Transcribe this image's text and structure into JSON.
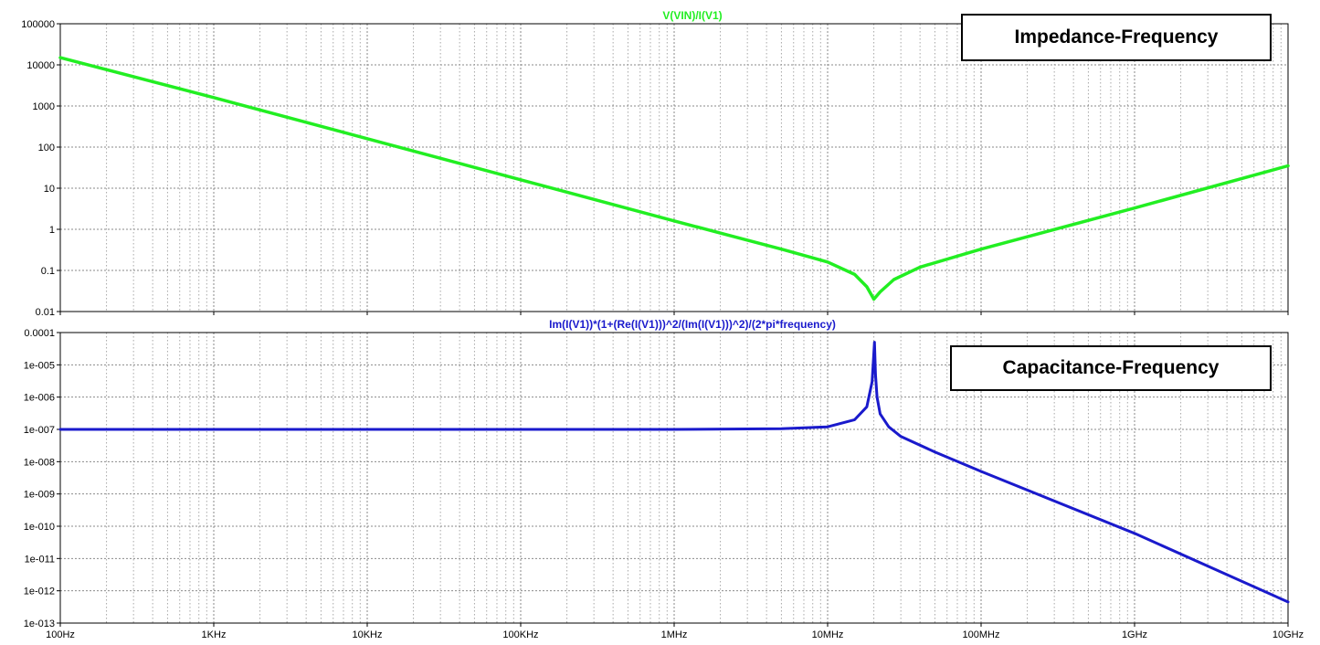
{
  "chart_data": [
    {
      "type": "line",
      "title": "V(VIN)/I(V1)",
      "annotation": "Impedance-Frequency",
      "x_scale": "log",
      "y_scale": "log",
      "xlim": [
        100,
        10000000000
      ],
      "ylim": [
        0.01,
        100000
      ],
      "x_ticks": [
        {
          "value": 100,
          "label": "100Hz"
        },
        {
          "value": 1000,
          "label": "1KHz"
        },
        {
          "value": 10000,
          "label": "10KHz"
        },
        {
          "value": 100000,
          "label": "100KHz"
        },
        {
          "value": 1000000,
          "label": "1MHz"
        },
        {
          "value": 10000000,
          "label": "10MHz"
        },
        {
          "value": 100000000,
          "label": "100MHz"
        },
        {
          "value": 1000000000,
          "label": "1GHz"
        },
        {
          "value": 10000000000,
          "label": "10GHz"
        }
      ],
      "y_ticks": [
        {
          "value": 0.01,
          "label": "0.01"
        },
        {
          "value": 0.1,
          "label": "0.1"
        },
        {
          "value": 1,
          "label": "1"
        },
        {
          "value": 10,
          "label": "10"
        },
        {
          "value": 100,
          "label": "100"
        },
        {
          "value": 1000,
          "label": "1000"
        },
        {
          "value": 10000,
          "label": "10000"
        },
        {
          "value": 100000,
          "label": "100000"
        }
      ],
      "grid": true,
      "color": "#22ee22",
      "series": [
        {
          "x": [
            100,
            1000,
            10000,
            100000,
            1000000,
            5000000,
            10000000,
            15000000,
            18000000,
            20000000,
            22000000,
            27000000,
            40000000,
            100000000,
            1000000000,
            10000000000
          ],
          "y": [
            15000,
            1600,
            160,
            16,
            1.6,
            0.33,
            0.16,
            0.08,
            0.04,
            0.02,
            0.03,
            0.06,
            0.12,
            0.33,
            3.3,
            35
          ]
        }
      ]
    },
    {
      "type": "line",
      "title": "Im(I(V1))*(1+(Re(I(V1)))^2/(Im(I(V1)))^2)/(2*pi*frequency)",
      "annotation": "Capacitance-Frequency",
      "x_scale": "log",
      "y_scale": "log",
      "xlim": [
        100,
        10000000000
      ],
      "ylim": [
        1e-13,
        0.0001
      ],
      "x_ticks": [
        {
          "value": 100,
          "label": "100Hz"
        },
        {
          "value": 1000,
          "label": "1KHz"
        },
        {
          "value": 10000,
          "label": "10KHz"
        },
        {
          "value": 100000,
          "label": "100KHz"
        },
        {
          "value": 1000000,
          "label": "1MHz"
        },
        {
          "value": 10000000,
          "label": "10MHz"
        },
        {
          "value": 100000000,
          "label": "100MHz"
        },
        {
          "value": 1000000000,
          "label": "1GHz"
        },
        {
          "value": 10000000000,
          "label": "10GHz"
        }
      ],
      "y_ticks": [
        {
          "value": 1e-13,
          "label": "1e-013"
        },
        {
          "value": 1e-12,
          "label": "1e-012"
        },
        {
          "value": 1e-11,
          "label": "1e-011"
        },
        {
          "value": 1e-10,
          "label": "1e-010"
        },
        {
          "value": 1e-09,
          "label": "1e-009"
        },
        {
          "value": 1e-08,
          "label": "1e-008"
        },
        {
          "value": 1e-07,
          "label": "1e-007"
        },
        {
          "value": 1e-06,
          "label": "1e-006"
        },
        {
          "value": 1e-05,
          "label": "1e-005"
        },
        {
          "value": 0.0001,
          "label": "0.0001"
        }
      ],
      "grid": true,
      "color": "#1a1acc",
      "series": [
        {
          "x": [
            100,
            1000000,
            5000000,
            10000000,
            15000000,
            18000000,
            19500000,
            20200000,
            20500000,
            21000000,
            22000000,
            25000000,
            30000000,
            50000000,
            100000000,
            1000000000,
            10000000000
          ],
          "y": [
            1e-07,
            1e-07,
            1.05e-07,
            1.2e-07,
            2e-07,
            5e-07,
            3e-06,
            5e-05,
            5e-06,
            1e-06,
            3e-07,
            1.2e-07,
            6e-08,
            2e-08,
            5e-09,
            6e-11,
            4.5e-13
          ]
        }
      ]
    }
  ]
}
